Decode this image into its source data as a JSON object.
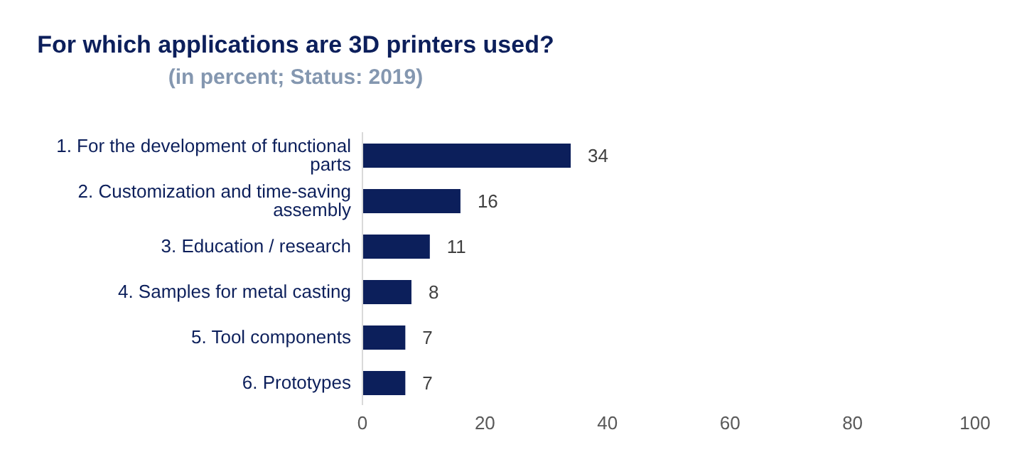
{
  "chart_data": {
    "type": "bar",
    "orientation": "horizontal",
    "title": "For which applications are 3D printers used?",
    "subtitle": "(in percent; Status: 2019)",
    "categories": [
      "1. For the development of functional parts",
      "2. Customization and time-saving assembly",
      "3. Education / research",
      "4. Samples for metal casting",
      "5. Tool components",
      "6. Prototypes"
    ],
    "values": [
      34,
      16,
      11,
      8,
      7,
      7
    ],
    "color": "#0c1f5b",
    "xlim": [
      0,
      100
    ],
    "xticks": [
      0,
      20,
      40,
      60,
      80,
      100
    ],
    "grid": false,
    "legend": false,
    "data_labels": true
  }
}
